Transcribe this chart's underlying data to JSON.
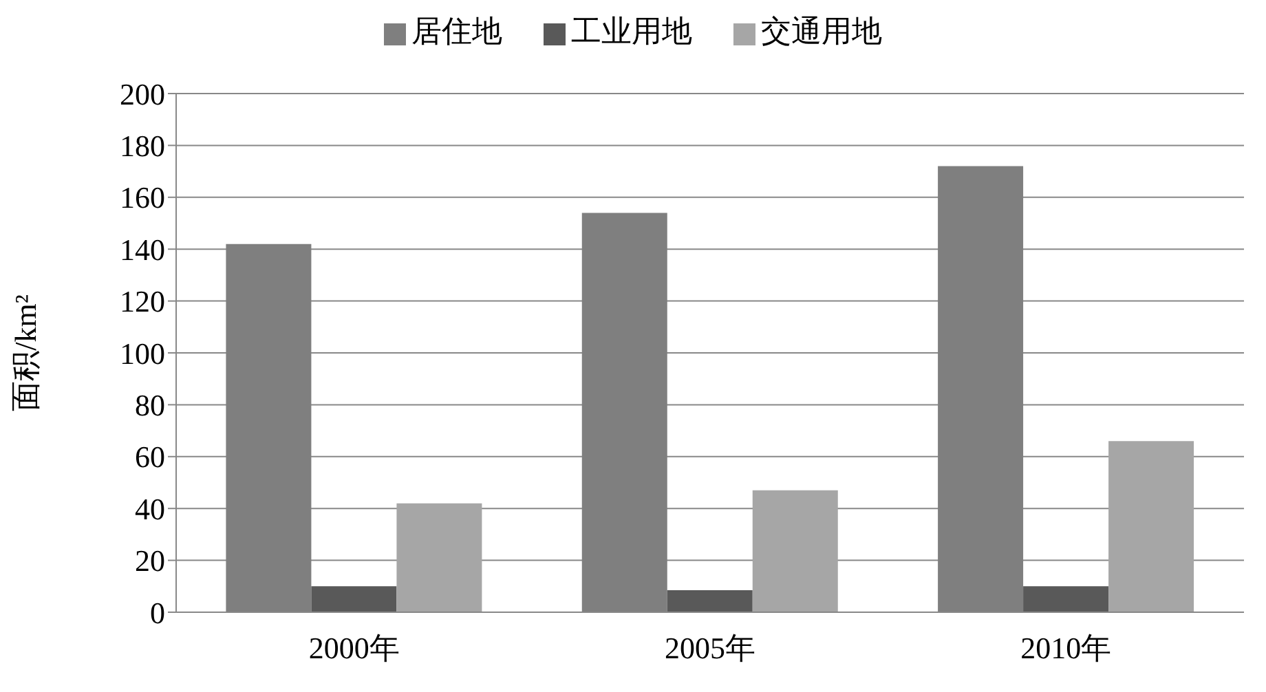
{
  "chart_data": {
    "type": "bar",
    "categories": [
      "2000年",
      "2005年",
      "2010年"
    ],
    "ylabel": "面积/km²",
    "ylim": [
      0,
      200
    ],
    "yticks": [
      0,
      20,
      40,
      60,
      80,
      100,
      120,
      140,
      160,
      180,
      200
    ],
    "grid": "y",
    "legend": "top",
    "series": [
      {
        "name": "居住地",
        "color": "#7f7f7f",
        "values": [
          142,
          154,
          172
        ]
      },
      {
        "name": "工业用地",
        "color": "#595959",
        "values": [
          10,
          8.5,
          10
        ]
      },
      {
        "name": "交通用地",
        "color": "#a6a6a6",
        "values": [
          42,
          47,
          66
        ]
      }
    ]
  }
}
